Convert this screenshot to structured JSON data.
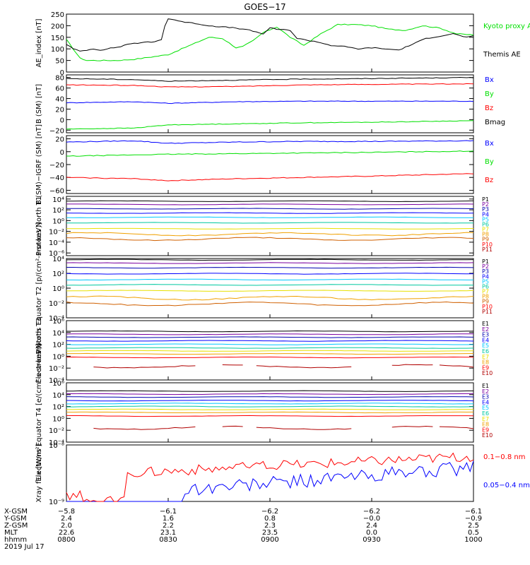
{
  "title": "GOES−17",
  "colors": {
    "black": "#000000",
    "green": "#00e000",
    "blue": "#0000ff",
    "red": "#ff0000",
    "darkred": "#b00000",
    "purple": "#7a00a0",
    "navy": "#0000b0",
    "cyan": "#00c8ff",
    "teal": "#00c8a0",
    "yellow": "#e8e000",
    "orange": "#f0a000",
    "brown": "#d06000"
  },
  "chart_data": [
    {
      "type": "line",
      "ylabel": "AE_index [nT]",
      "ylim": [
        0,
        250
      ],
      "yticks": [
        "0",
        "50",
        "100",
        "150",
        "200",
        "250"
      ],
      "series": [
        {
          "name": "Kyoto proxy AE",
          "color": "green",
          "x": [
            0,
            2,
            4,
            6,
            8,
            10,
            15,
            20,
            25,
            30,
            34,
            38,
            42,
            46,
            50,
            52,
            55,
            58,
            62,
            66,
            70,
            75,
            80,
            85,
            90,
            95,
            100,
            105,
            110,
            115,
            120
          ],
          "values": [
            140,
            100,
            60,
            50,
            50,
            50,
            50,
            55,
            65,
            75,
            100,
            125,
            150,
            145,
            105,
            110,
            135,
            170,
            195,
            150,
            115,
            165,
            205,
            205,
            200,
            185,
            180,
            200,
            190,
            165,
            160
          ]
        },
        {
          "name": "Themis AE",
          "color": "black",
          "x": [
            0,
            2,
            4,
            6,
            8,
            10,
            12,
            14,
            16,
            18,
            20,
            22,
            24,
            26,
            28,
            29,
            30,
            32,
            35,
            38,
            42,
            46,
            50,
            54,
            58,
            60,
            62,
            66,
            68,
            70,
            74,
            78,
            82,
            86,
            90,
            94,
            98,
            102,
            106,
            110,
            114,
            118,
            120
          ],
          "values": [
            120,
            100,
            90,
            95,
            100,
            95,
            100,
            105,
            110,
            120,
            125,
            125,
            130,
            130,
            140,
            200,
            230,
            225,
            215,
            210,
            200,
            195,
            190,
            180,
            165,
            190,
            185,
            180,
            145,
            140,
            130,
            115,
            110,
            100,
            105,
            100,
            95,
            120,
            145,
            155,
            165,
            150,
            155
          ]
        }
      ]
    },
    {
      "type": "line",
      "ylabel": "B (SM) [nT]",
      "ylim": [
        -25,
        85
      ],
      "yticks": [
        "−20",
        "0",
        "20",
        "40",
        "60",
        "80"
      ],
      "series": [
        {
          "name": "Bx",
          "color": "blue",
          "x": [
            0,
            20,
            30,
            50,
            70,
            90,
            120
          ],
          "values": [
            32,
            34,
            31,
            34,
            35,
            35,
            35
          ]
        },
        {
          "name": "By",
          "color": "green",
          "x": [
            0,
            20,
            30,
            50,
            70,
            90,
            120
          ],
          "values": [
            -18,
            -16,
            -10,
            -8,
            -6,
            -5,
            -2
          ]
        },
        {
          "name": "Bz",
          "color": "red",
          "x": [
            0,
            20,
            30,
            50,
            70,
            90,
            120
          ],
          "values": [
            66,
            65,
            62,
            63,
            66,
            67,
            68
          ]
        },
        {
          "name": "Bmag",
          "color": "black",
          "x": [
            0,
            20,
            30,
            50,
            70,
            90,
            120
          ],
          "values": [
            78,
            76,
            73,
            75,
            77,
            78,
            80
          ]
        }
      ]
    },
    {
      "type": "line",
      "ylabel": "B (SM)−IGRF (SM) [nT]",
      "ylim": [
        -65,
        25
      ],
      "yticks": [
        "−60",
        "−40",
        "−20",
        "0",
        "20"
      ],
      "series": [
        {
          "name": "Bx",
          "color": "blue",
          "x": [
            0,
            20,
            30,
            50,
            70,
            90,
            120
          ],
          "values": [
            15,
            17,
            13,
            15,
            16,
            16,
            17
          ]
        },
        {
          "name": "By",
          "color": "green",
          "x": [
            0,
            20,
            30,
            50,
            70,
            90,
            120
          ],
          "values": [
            -7,
            -5,
            -4,
            -3,
            -2,
            -1,
            1
          ]
        },
        {
          "name": "Bz",
          "color": "red",
          "x": [
            0,
            20,
            30,
            50,
            70,
            90,
            120
          ],
          "values": [
            -40,
            -42,
            -45,
            -42,
            -40,
            -38,
            -34
          ]
        }
      ]
    },
    {
      "type": "line",
      "log": true,
      "ylabel": "Protons North T1",
      "ylim": [
        -6.5,
        4.5
      ],
      "yticks": [
        "10⁻⁶",
        "10⁻⁴",
        "10⁻²",
        "10⁰",
        "10²",
        "10⁴"
      ],
      "channels": [
        {
          "name": "P1",
          "color": "black",
          "log_value": 3.6
        },
        {
          "name": "P2",
          "color": "purple",
          "log_value": 3.0
        },
        {
          "name": "P3",
          "color": "navy",
          "log_value": 2.2
        },
        {
          "name": "P4",
          "color": "blue",
          "log_value": 1.4
        },
        {
          "name": "P5",
          "color": "cyan",
          "log_value": 0.6
        },
        {
          "name": "P6",
          "color": "teal",
          "log_value": -0.4
        },
        {
          "name": "P7",
          "color": "yellow",
          "log_value": -1.5
        },
        {
          "name": "P8",
          "color": "orange",
          "log_value": -2.5
        },
        {
          "name": "P9",
          "color": "brown",
          "log_value": -3.4
        },
        {
          "name": "P10",
          "color": "red",
          "log_value": null
        },
        {
          "name": "P11",
          "color": "darkred",
          "log_value": null
        }
      ]
    },
    {
      "type": "line",
      "log": true,
      "ylabel": "Protons Equator T2 [p/(cm²-s-sr-keV)]",
      "ylim": [
        -5,
        4
      ],
      "yticks": [
        "10⁻⁴",
        "10⁻²",
        "10⁰",
        "10²",
        "10⁴"
      ],
      "channels": [
        {
          "name": "P1",
          "color": "black",
          "log_value": 3.8
        },
        {
          "name": "P2",
          "color": "purple",
          "log_value": 3.3
        },
        {
          "name": "P3",
          "color": "navy",
          "log_value": 2.6
        },
        {
          "name": "P4",
          "color": "blue",
          "log_value": 1.7
        },
        {
          "name": "P5",
          "color": "cyan",
          "log_value": 0.8
        },
        {
          "name": "P6",
          "color": "teal",
          "log_value": 0.0
        },
        {
          "name": "P7",
          "color": "yellow",
          "log_value": -0.9
        },
        {
          "name": "P8",
          "color": "orange",
          "log_value": -2.0
        },
        {
          "name": "P9",
          "color": "brown",
          "log_value": -2.9
        },
        {
          "name": "P10",
          "color": "red",
          "log_value": null
        },
        {
          "name": "P11",
          "color": "darkred",
          "log_value": null
        }
      ]
    },
    {
      "type": "line",
      "log": true,
      "ylabel": "Electrons North T3",
      "ylim": [
        -4,
        6
      ],
      "yticks": [
        "10⁻⁴",
        "10⁻²",
        "10⁰",
        "10²",
        "10⁴",
        "10⁶"
      ],
      "channels": [
        {
          "name": "E1",
          "color": "black",
          "log_value": 4.2
        },
        {
          "name": "E2",
          "color": "purple",
          "log_value": 3.7
        },
        {
          "name": "E3",
          "color": "navy",
          "log_value": 3.2
        },
        {
          "name": "E4",
          "color": "blue",
          "log_value": 2.6
        },
        {
          "name": "E5",
          "color": "cyan",
          "log_value": 2.0
        },
        {
          "name": "E6",
          "color": "teal",
          "log_value": 1.4
        },
        {
          "name": "E7",
          "color": "yellow",
          "log_value": 0.9
        },
        {
          "name": "E8",
          "color": "orange",
          "log_value": 0.4
        },
        {
          "name": "E9",
          "color": "red",
          "log_value": -0.2
        },
        {
          "name": "E10",
          "color": "darkred",
          "log_value": -1.7
        }
      ]
    },
    {
      "type": "line",
      "log": true,
      "ylabel": "Electrons Equator T4 [e/(cm²-s-sr-keV)]",
      "ylim": [
        -4,
        6
      ],
      "yticks": [
        "10⁻⁴",
        "10⁻²",
        "10⁰",
        "10²",
        "10⁴",
        "10⁶"
      ],
      "channels": [
        {
          "name": "E1",
          "color": "black",
          "log_value": 4.6
        },
        {
          "name": "E2",
          "color": "purple",
          "log_value": 4.1
        },
        {
          "name": "E3",
          "color": "navy",
          "log_value": 3.6
        },
        {
          "name": "E4",
          "color": "blue",
          "log_value": 3.0
        },
        {
          "name": "E5",
          "color": "cyan",
          "log_value": 2.5
        },
        {
          "name": "E6",
          "color": "teal",
          "log_value": 2.0
        },
        {
          "name": "E7",
          "color": "yellow",
          "log_value": 1.5
        },
        {
          "name": "E8",
          "color": "orange",
          "log_value": 1.0
        },
        {
          "name": "E9",
          "color": "red",
          "log_value": 0.4
        },
        {
          "name": "E10",
          "color": "darkred",
          "log_value": -1.6
        }
      ]
    },
    {
      "type": "line",
      "log": true,
      "ylabel": "Xray flux [W/m²]",
      "ylim": [
        -9,
        -8
      ],
      "yticks": [
        "10⁻⁹",
        "10⁻⁸"
      ],
      "series": [
        {
          "name": "0.1−0.8 nm",
          "color": "red"
        },
        {
          "name": "0.05−0.4 nm",
          "color": "blue"
        }
      ]
    }
  ],
  "x_axis": {
    "range": [
      0,
      120
    ],
    "tick_x": [
      0,
      30,
      60,
      90,
      120
    ],
    "row_labels": [
      "X-GSM",
      "Y-GSM",
      "Z-GSM",
      "MLT",
      "hhmm",
      "2019 Jul 17"
    ],
    "rows": [
      [
        "−5.8",
        "−6.1",
        "−6.2",
        "−6.2",
        "−6.1"
      ],
      [
        "2.4",
        "1.6",
        "0.8",
        "−0.0",
        "−0.9"
      ],
      [
        "2.0",
        "2.2",
        "2.3",
        "2.4",
        "2.5"
      ],
      [
        "22.6",
        "23.1",
        "23.5",
        "0.0",
        "0.5"
      ],
      [
        "0800",
        "0830",
        "0900",
        "0930",
        "1000"
      ]
    ]
  }
}
